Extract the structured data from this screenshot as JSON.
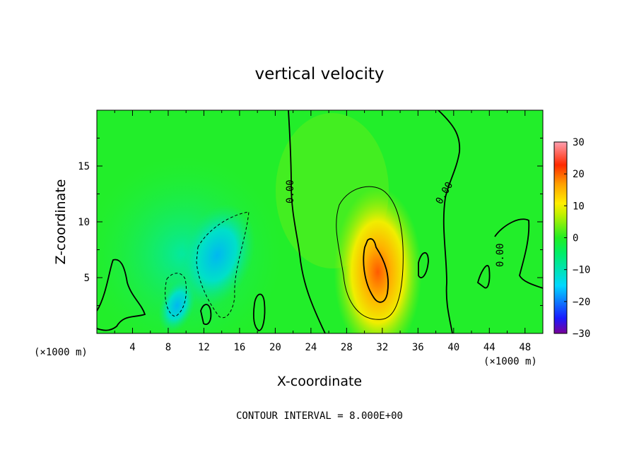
{
  "chart_data": {
    "type": "heatmap",
    "title": "vertical velocity",
    "xlabel": "X-coordinate",
    "ylabel": "Z-coordinate",
    "x_unit": "(×1000 m)",
    "y_unit": "(×1000 m)",
    "xlim": [
      0,
      50
    ],
    "ylim": [
      0,
      20
    ],
    "x_ticks": [
      "4",
      "8",
      "12",
      "16",
      "20",
      "24",
      "28",
      "32",
      "36",
      "40",
      "44",
      "48"
    ],
    "x_tick_values": [
      4,
      8,
      12,
      16,
      20,
      24,
      28,
      32,
      36,
      40,
      44,
      48
    ],
    "y_ticks": [
      "5",
      "10",
      "15"
    ],
    "y_tick_values": [
      5,
      10,
      15
    ],
    "colorbar": {
      "min": -30,
      "max": 30,
      "ticks": [
        "30",
        "20",
        "10",
        "0",
        "−10",
        "−20",
        "−30"
      ],
      "tick_values": [
        30,
        20,
        10,
        0,
        -10,
        -20,
        -30
      ]
    },
    "contour_interval_label": "CONTOUR INTERVAL = 8.000E+00",
    "contour_labels": [
      "0.00",
      "0.00",
      "0.00"
    ],
    "features": [
      {
        "name": "updraft-core",
        "x": 31.5,
        "z": 5.5,
        "value": 22
      },
      {
        "name": "downdraft",
        "x": 13.5,
        "z": 7,
        "value": -10
      },
      {
        "name": "downdraft-low",
        "x": 9,
        "z": 2.5,
        "value": -12
      }
    ]
  }
}
